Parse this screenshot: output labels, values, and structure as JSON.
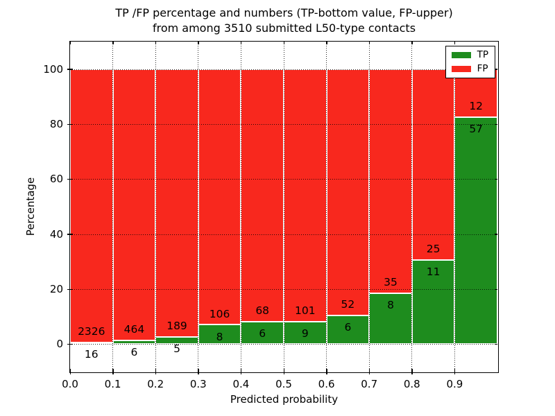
{
  "title": {
    "line1": "TP /FP percentage and numbers (TP-bottom value, FP-upper)",
    "line2": "from among 3510 submitted L50-type contacts"
  },
  "axes": {
    "xlabel": "Predicted probability",
    "ylabel": "Percentage"
  },
  "legend": {
    "position": "upper right",
    "entries": [
      {
        "label": "TP",
        "color": "#1E8C1E"
      },
      {
        "label": "FP",
        "color": "#F8281E"
      }
    ]
  },
  "colors": {
    "tp_green": "#1E8C1E",
    "fp_red": "#F8281E",
    "grid": "#000000",
    "background": "#FFFFFF",
    "text": "#000000"
  },
  "chart_data": {
    "type": "bar",
    "stacked": true,
    "normalized": "percent (each bin sums to 100)",
    "title": "TP /FP percentage and numbers (TP-bottom value, FP-upper) from among 3510 submitted L50-type contacts",
    "xlabel": "Predicted probability",
    "ylabel": "Percentage",
    "total_submitted": 3510,
    "bin_width": 0.1,
    "xticks": [
      "0.0",
      "0.1",
      "0.2",
      "0.3",
      "0.4",
      "0.5",
      "0.6",
      "0.7",
      "0.8",
      "0.9"
    ],
    "yticks": [
      0,
      20,
      40,
      60,
      80,
      100
    ],
    "xlim": [
      0.0,
      1.0
    ],
    "ylim": [
      -10,
      110
    ],
    "grid": "dotted",
    "legend_position": "upper right",
    "series": [
      {
        "name": "TP",
        "color": "#1E8C1E",
        "counts": [
          16,
          6,
          5,
          8,
          6,
          9,
          6,
          8,
          11,
          57
        ]
      },
      {
        "name": "FP",
        "color": "#F8281E",
        "counts": [
          2326,
          464,
          189,
          106,
          68,
          101,
          52,
          35,
          25,
          12
        ]
      }
    ],
    "bins": [
      {
        "range": "0.0-0.1",
        "tp": 16,
        "fp": 2326,
        "tp_percent": 0.68
      },
      {
        "range": "0.1-0.2",
        "tp": 6,
        "fp": 464,
        "tp_percent": 1.28
      },
      {
        "range": "0.2-0.3",
        "tp": 5,
        "fp": 189,
        "tp_percent": 2.58
      },
      {
        "range": "0.3-0.4",
        "tp": 8,
        "fp": 106,
        "tp_percent": 7.02
      },
      {
        "range": "0.4-0.5",
        "tp": 6,
        "fp": 68,
        "tp_percent": 8.11
      },
      {
        "range": "0.5-0.6",
        "tp": 9,
        "fp": 101,
        "tp_percent": 8.18
      },
      {
        "range": "0.6-0.7",
        "tp": 6,
        "fp": 52,
        "tp_percent": 10.34
      },
      {
        "range": "0.7-0.8",
        "tp": 8,
        "fp": 35,
        "tp_percent": 18.6
      },
      {
        "range": "0.8-0.9",
        "tp": 11,
        "fp": 25,
        "tp_percent": 30.56
      },
      {
        "range": "0.9-1.0",
        "tp": 57,
        "fp": 12,
        "tp_percent": 82.61
      }
    ]
  }
}
